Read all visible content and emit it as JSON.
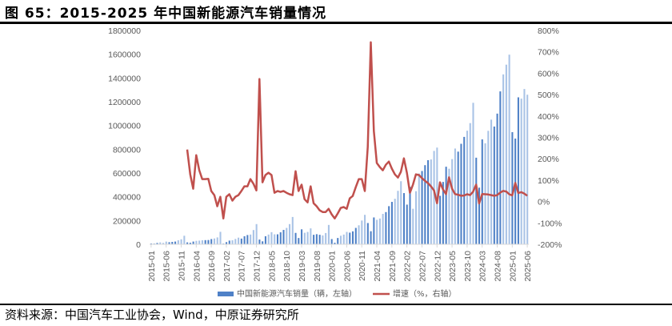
{
  "title": "图 65：2015-2025 年中国新能源汽车销量情况",
  "source": "资料来源：中国汽车工业协会，Wind，中原证券研究所",
  "colors": {
    "bar_dark": "#4f81c7",
    "bar_light": "#a9c3e6",
    "line": "#c0504d"
  },
  "chart_data": {
    "type": "bar+line",
    "title": "2015-2025 年中国新能源汽车销量情况",
    "start_month": "2015-01",
    "x_tick_labels": [
      "2015-01",
      "2015-06",
      "2015-11",
      "2016-04",
      "2016-09",
      "2017-02",
      "2017-07",
      "2017-12",
      "2018-05",
      "2018-10",
      "2019-03",
      "2019-08",
      "2020-01",
      "2020-06",
      "2020-11",
      "2021-04",
      "2021-09",
      "2022-02",
      "2022-07",
      "2022-12",
      "2023-05",
      "2023-10",
      "2024-03",
      "2024-08",
      "2025-01",
      "2025-06"
    ],
    "left_axis": {
      "min": 0,
      "max": 1800000,
      "step": 200000,
      "tick_labels": [
        "0",
        "200000",
        "400000",
        "600000",
        "800000",
        "1000000",
        "1200000",
        "1400000",
        "1600000",
        "1800000"
      ]
    },
    "right_axis": {
      "min": -200,
      "max": 800,
      "step": 100,
      "tick_labels": [
        "-200%",
        "-100%",
        "0%",
        "100%",
        "200%",
        "300%",
        "400%",
        "500%",
        "600%",
        "700%",
        "800%"
      ]
    },
    "legend": {
      "placement": "bottom",
      "entries": [
        "中国新能源汽车销量（辆，左轴）",
        "增速（%，右轴）"
      ]
    },
    "series": [
      {
        "name": "中国新能源汽车销量（辆，左轴）",
        "type": "bar",
        "axis": "left",
        "values": [
          6600,
          5700,
          11300,
          15800,
          11600,
          22900,
          17600,
          20200,
          23000,
          34000,
          42000,
          72000,
          16000,
          13000,
          23000,
          29000,
          31000,
          34000,
          35000,
          36000,
          44000,
          49000,
          58000,
          105000,
          5700,
          18000,
          31000,
          34000,
          45000,
          56000,
          48000,
          68000,
          78000,
          82000,
          120000,
          170000,
          40000,
          25000,
          68000,
          82000,
          102000,
          84000,
          84000,
          101000,
          121000,
          138000,
          170000,
          230000,
          96000,
          53000,
          126000,
          97000,
          104000,
          134000,
          80000,
          85000,
          80000,
          75000,
          95000,
          163000,
          44000,
          13000,
          53000,
          72000,
          82000,
          104000,
          98000,
          109000,
          138000,
          160000,
          200000,
          248000,
          179000,
          110000,
          226000,
          206000,
          217000,
          256000,
          271000,
          321000,
          357000,
          383000,
          450000,
          531000,
          431000,
          334000,
          484000,
          299000,
          447000,
          596000,
          617000,
          666000,
          708000,
          714000,
          786000,
          814000,
          408000,
          525000,
          653000,
          636000,
          717000,
          806000,
          780000,
          846000,
          904000,
          956000,
          1020000,
          1191000,
          729000,
          477000,
          883000,
          850000,
          955000,
          1049000,
          991000,
          1100000,
          1287000,
          1430000,
          1512000,
          1596000,
          944000,
          890000,
          1237000,
          1226000,
          1307000,
          1259000
        ]
      },
      {
        "name": "增速（%，右轴）",
        "type": "line",
        "axis": "right",
        "start_month": "2016-01",
        "values": [
          243,
          127,
          60,
          217,
          146,
          105,
          105,
          106,
          49,
          30,
          -22,
          22,
          -79,
          22,
          34,
          4,
          22,
          30,
          49,
          71,
          71,
          105,
          83,
          52,
          573,
          90,
          124,
          135,
          124,
          41,
          49,
          45,
          49,
          41,
          34,
          30,
          142,
          49,
          79,
          11,
          -4,
          71,
          -8,
          -22,
          -41,
          -49,
          -49,
          -34,
          -60,
          -79,
          -56,
          -30,
          -26,
          -34,
          15,
          26,
          67,
          105,
          105,
          49,
          255,
          745,
          330,
          180,
          161,
          146,
          172,
          187,
          154,
          127,
          112,
          139,
          202,
          135,
          41,
          79,
          127,
          124,
          109,
          97,
          86,
          71,
          52,
          -8,
          90,
          56,
          35,
          113,
          60,
          35,
          32,
          27,
          28,
          34,
          30,
          46,
          79,
          -9,
          35,
          34,
          33,
          30,
          27,
          30,
          42,
          50,
          47,
          34,
          29,
          87,
          40,
          44,
          37,
          27
        ]
      }
    ]
  }
}
